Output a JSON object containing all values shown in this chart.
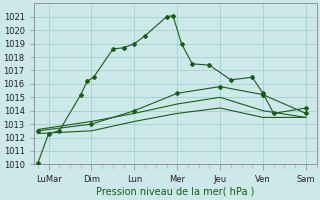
{
  "xlabel": "Pression niveau de la mer( hPa )",
  "background_color": "#cce8e8",
  "grid_color": "#99cccc",
  "line_color": "#1a5c1a",
  "ylim": [
    1010,
    1022
  ],
  "xlim": [
    -0.2,
    13.0
  ],
  "xtick_labels": [
    "LuMar",
    "Dim",
    "Lun",
    "Mer",
    "Jeu",
    "Ven",
    "Sam"
  ],
  "xtick_positions": [
    0.5,
    2.5,
    4.5,
    6.5,
    8.5,
    10.5,
    12.5
  ],
  "ytick_values": [
    1010,
    1011,
    1012,
    1013,
    1014,
    1015,
    1016,
    1017,
    1018,
    1019,
    1020,
    1021
  ],
  "series1_x": [
    0.0,
    0.5,
    1.0,
    2.0,
    2.3,
    2.6,
    3.5,
    4.0,
    4.5,
    5.0,
    6.0,
    6.3,
    6.7,
    7.2,
    8.0,
    9.0,
    10.0,
    10.5,
    11.0,
    12.5
  ],
  "series1_y": [
    1010.1,
    1012.3,
    1012.5,
    1015.2,
    1016.2,
    1016.5,
    1018.6,
    1018.7,
    1019.0,
    1019.6,
    1021.0,
    1021.1,
    1019.0,
    1017.5,
    1017.4,
    1016.3,
    1016.5,
    1015.3,
    1013.8,
    1014.2
  ],
  "series2_x": [
    0.0,
    2.5,
    4.5,
    6.5,
    8.5,
    10.5,
    12.5
  ],
  "series2_y": [
    1012.5,
    1013.0,
    1014.0,
    1015.3,
    1015.8,
    1015.2,
    1013.8
  ],
  "series3_x": [
    0.0,
    2.5,
    4.5,
    6.5,
    8.5,
    10.5,
    12.5
  ],
  "series3_y": [
    1012.6,
    1013.2,
    1013.8,
    1014.5,
    1015.0,
    1014.0,
    1013.5
  ],
  "series4_x": [
    0.0,
    2.5,
    4.5,
    6.5,
    8.5,
    10.5,
    12.5
  ],
  "series4_y": [
    1012.3,
    1012.5,
    1013.2,
    1013.8,
    1014.2,
    1013.5,
    1013.5
  ],
  "tickfont_size": 6,
  "xlabel_fontsize": 7,
  "xlabel_color": "#1a5c1a"
}
